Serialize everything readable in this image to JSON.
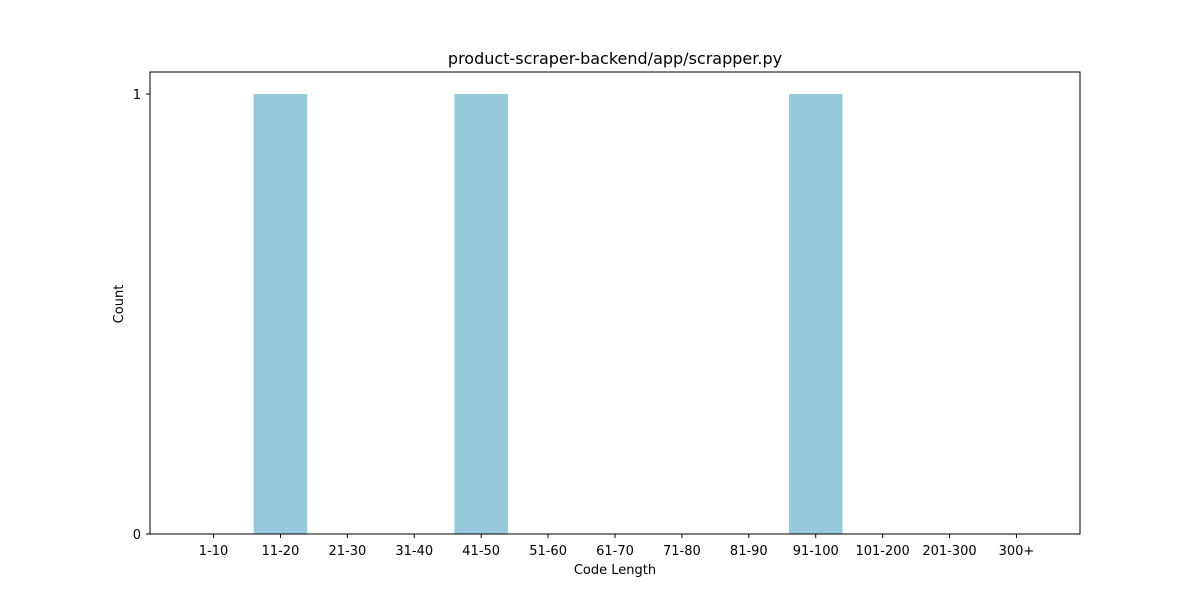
{
  "chart_data": {
    "type": "bar",
    "title": "product-scraper-backend/app/scrapper.py",
    "xlabel": "Code Length",
    "ylabel": "Count",
    "categories": [
      "1-10",
      "11-20",
      "21-30",
      "31-40",
      "41-50",
      "51-60",
      "61-70",
      "71-80",
      "81-90",
      "91-100",
      "101-200",
      "201-300",
      "300+"
    ],
    "values": [
      0,
      1,
      0,
      0,
      1,
      0,
      0,
      0,
      0,
      1,
      0,
      0,
      0
    ],
    "ylim": [
      0,
      1.05
    ],
    "yticks": [
      0,
      1
    ],
    "bar_color": "#96c9dc",
    "grid": false,
    "legend": "none"
  }
}
